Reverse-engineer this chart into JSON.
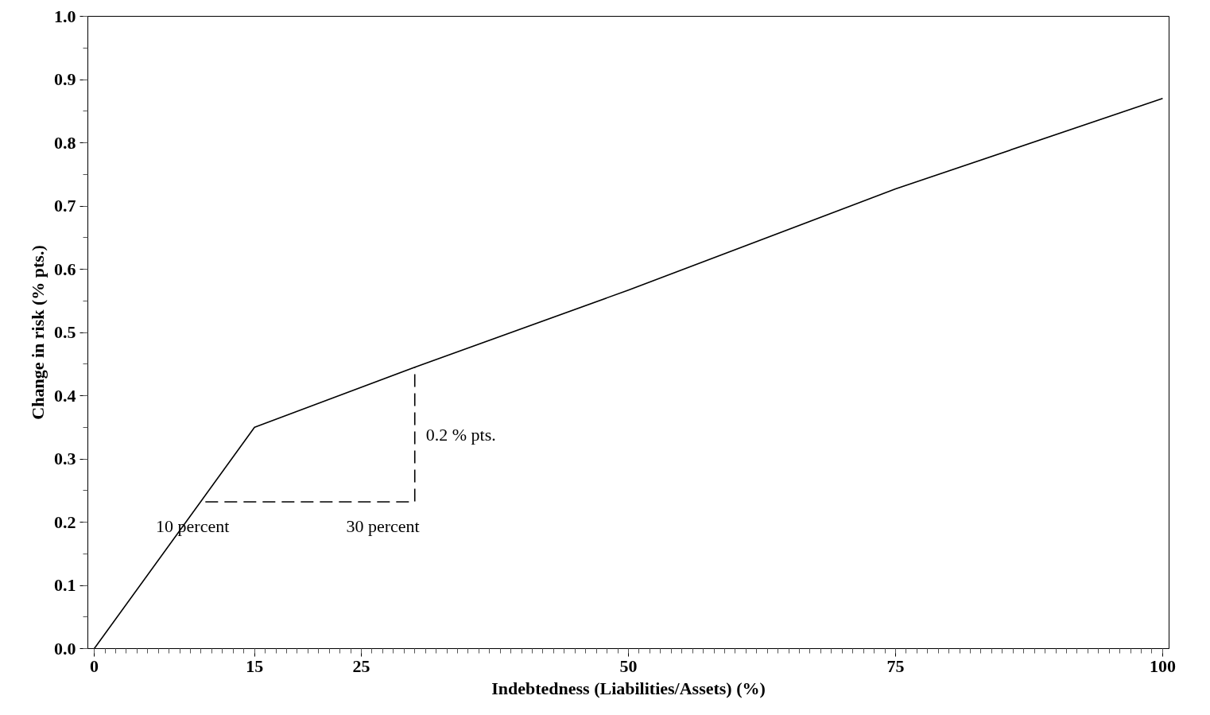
{
  "chart_data": {
    "type": "line",
    "xlabel": "Indebtedness (Liabilities/Assets) (%)",
    "ylabel": "Change in risk (% pts.)",
    "series": [
      {
        "color": "#000000",
        "line_style": "solid",
        "x": [
          0,
          15,
          30,
          50,
          75,
          100
        ],
        "values": [
          0,
          0.35,
          0.445,
          0.567,
          0.727,
          0.87
        ]
      },
      {
        "color": "#000000",
        "line_style": "dashed",
        "x": [
          10.4,
          30,
          30
        ],
        "values": [
          0.232,
          0.232,
          0.445
        ]
      }
    ],
    "annotations": [
      "10 percent",
      "30 percent",
      "0.2 % pts."
    ],
    "xlim": [
      -0.6,
      100.6
    ],
    "ylim": [
      0,
      1.0
    ],
    "xticks": [
      0,
      15,
      25,
      50,
      75,
      100
    ],
    "yticks": [
      {
        "value": 0,
        "label": "0.0"
      },
      {
        "value": 0.1,
        "label": "0.1"
      },
      {
        "value": 0.2,
        "label": "0.2"
      },
      {
        "value": 0.3,
        "label": "0.3"
      },
      {
        "value": 0.4,
        "label": "0.4"
      },
      {
        "value": 0.5,
        "label": "0.5"
      },
      {
        "value": 0.6,
        "label": "0.6"
      },
      {
        "value": 0.7,
        "label": "0.7"
      },
      {
        "value": 0.8,
        "label": "0.8"
      },
      {
        "value": 0.9,
        "label": "0.9"
      },
      {
        "value": 1.0,
        "label": "1.0"
      }
    ],
    "grid": false
  }
}
